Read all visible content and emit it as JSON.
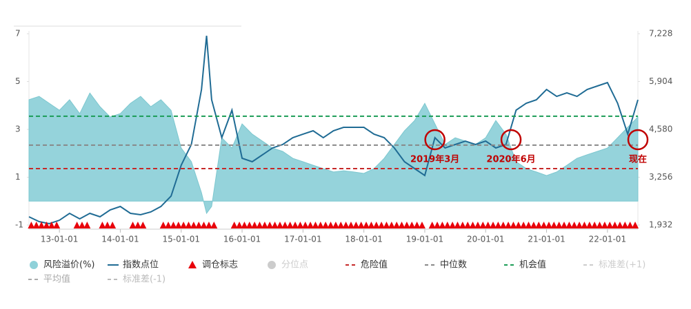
{
  "chart_data": {
    "type": "area-line",
    "x": [
      "12-07-01",
      "12-09-01",
      "12-11-01",
      "13-01-01",
      "13-03-01",
      "13-05-01",
      "13-07-01",
      "13-09-01",
      "13-11-01",
      "14-01-01",
      "14-03-01",
      "14-05-01",
      "14-07-01",
      "14-09-01",
      "14-11-01",
      "15-01-01",
      "15-03-01",
      "15-05-01",
      "15-06-01",
      "15-07-01",
      "15-09-01",
      "15-11-01",
      "16-01-01",
      "16-03-01",
      "16-05-01",
      "16-07-01",
      "16-09-01",
      "16-11-01",
      "17-01-01",
      "17-03-01",
      "17-05-01",
      "17-07-01",
      "17-09-01",
      "17-11-01",
      "18-01-01",
      "18-03-01",
      "18-05-01",
      "18-07-01",
      "18-09-01",
      "18-11-01",
      "19-01-01",
      "19-03-01",
      "19-05-01",
      "19-07-01",
      "19-09-01",
      "19-11-01",
      "20-01-01",
      "20-03-01",
      "20-05-01",
      "20-07-01",
      "20-09-01",
      "20-11-01",
      "21-01-01",
      "21-03-01",
      "21-05-01",
      "21-07-01",
      "21-09-01",
      "21-11-01",
      "22-01-01",
      "22-03-01",
      "22-05-01",
      "22-07-01"
    ],
    "series": [
      {
        "name": "风险溢价(%)",
        "type": "area",
        "color": "#8fd1d9",
        "values": [
          4.24,
          4.38,
          4.09,
          3.8,
          4.24,
          3.66,
          4.52,
          3.95,
          3.52,
          3.66,
          4.09,
          4.38,
          3.95,
          4.24,
          3.8,
          2.22,
          1.65,
          0.35,
          -0.51,
          -0.22,
          2.65,
          2.22,
          3.23,
          2.8,
          2.51,
          2.22,
          2.08,
          1.79,
          1.65,
          1.5,
          1.36,
          1.22,
          1.27,
          1.22,
          1.16,
          1.36,
          1.79,
          2.37,
          2.94,
          3.37,
          4.09,
          3.23,
          2.37,
          2.65,
          2.51,
          2.37,
          2.65,
          3.37,
          2.8,
          1.65,
          1.36,
          1.22,
          1.07,
          1.22,
          1.5,
          1.79,
          1.94,
          2.08,
          2.22,
          2.65,
          3.09,
          3.52
        ]
      },
      {
        "name": "指数点位",
        "type": "line",
        "axis": "y2",
        "color": "#1f6b94",
        "values": [
          2161,
          2027,
          1970,
          2065,
          2256,
          2103,
          2256,
          2161,
          2351,
          2446,
          2256,
          2218,
          2294,
          2446,
          2732,
          3589,
          4161,
          5685,
          7171,
          5400,
          4351,
          5113,
          3780,
          3685,
          3875,
          4066,
          4161,
          4351,
          4447,
          4542,
          4351,
          4542,
          4637,
          4637,
          4637,
          4447,
          4351,
          4066,
          3685,
          3494,
          3304,
          4351,
          4066,
          4161,
          4256,
          4161,
          4256,
          4066,
          4161,
          5113,
          5304,
          5399,
          5685,
          5494,
          5590,
          5494,
          5685,
          5780,
          5875,
          5304,
          4447,
          5399
        ]
      },
      {
        "name": "调仓标志",
        "type": "marker",
        "color": "#e8000b",
        "x": [
          "12-07-15",
          "12-08-15",
          "12-09-15",
          "12-10-15",
          "12-11-15",
          "12-12-15",
          "13-04-15",
          "13-05-15",
          "13-06-15",
          "13-09-15",
          "13-10-15",
          "13-11-15",
          "14-03-15",
          "14-04-15",
          "14-05-15",
          "14-09-15",
          "14-10-15",
          "14-11-15",
          "14-12-15",
          "15-01-15",
          "15-02-15",
          "15-03-15",
          "15-04-15",
          "15-05-15",
          "15-06-15",
          "15-07-15",
          "15-11-15",
          "15-12-15",
          "16-01-15",
          "16-02-15",
          "16-03-15",
          "16-04-15",
          "16-05-15",
          "16-06-15",
          "16-07-15",
          "16-08-15",
          "16-09-15",
          "16-10-15",
          "16-11-15",
          "16-12-15",
          "17-01-15",
          "17-02-15",
          "17-03-15",
          "17-04-15",
          "17-05-15",
          "17-06-15",
          "17-07-15",
          "17-08-15",
          "17-09-15",
          "17-10-15",
          "17-11-15",
          "17-12-15",
          "18-01-15",
          "18-02-15",
          "18-03-15",
          "18-04-15",
          "18-05-15",
          "18-06-15",
          "18-07-15",
          "18-08-15",
          "18-09-15",
          "18-10-15",
          "18-11-15",
          "18-12-15",
          "19-02-15",
          "19-03-15",
          "19-04-15",
          "19-05-15",
          "19-06-15",
          "19-07-15",
          "19-08-15",
          "19-09-15",
          "19-10-15",
          "19-11-15",
          "19-12-15",
          "20-01-15",
          "20-02-15",
          "20-03-15",
          "20-04-15",
          "20-05-15",
          "20-06-15",
          "20-07-15",
          "20-08-15",
          "20-09-15",
          "20-10-15",
          "20-11-15",
          "20-12-15",
          "21-01-15",
          "21-02-15",
          "21-03-15",
          "21-04-15",
          "21-05-15",
          "21-06-15",
          "21-07-15",
          "21-08-15",
          "21-09-15",
          "21-10-15",
          "21-11-15",
          "21-12-15",
          "22-01-15",
          "22-02-15",
          "22-03-15",
          "22-04-15",
          "22-05-15",
          "22-06-15"
        ]
      },
      {
        "name": "分位点",
        "type": "dot",
        "color": "#cccccc",
        "visible": false
      },
      {
        "name": "危险值",
        "type": "hline",
        "color": "#c62828",
        "value": 1.36
      },
      {
        "name": "中位数",
        "type": "hline",
        "color": "#888888",
        "value": 2.34
      },
      {
        "name": "机会值",
        "type": "hline",
        "color": "#1a9c55",
        "value": 3.55
      },
      {
        "name": "标准差(+1)",
        "type": "hline",
        "color": "#cccccc",
        "visible": false
      },
      {
        "name": "平均值",
        "type": "hline",
        "color": "#aaaaaa",
        "visible": false
      },
      {
        "name": "标准差(-1)",
        "type": "hline",
        "color": "#bbbbbb",
        "visible": false
      }
    ],
    "annotations": [
      {
        "text": "2019年3月",
        "x": "19-03-01",
        "y": 2.57
      },
      {
        "text": "2020年6月",
        "x": "20-06-01",
        "y": 2.57
      },
      {
        "text": "现在",
        "x": "22-07-01",
        "y": 2.57
      }
    ],
    "xlim": [
      "12-07-01",
      "22-07-01"
    ],
    "xticks": [
      "13-01-01",
      "14-01-01",
      "15-01-01",
      "16-01-01",
      "17-01-01",
      "18-01-01",
      "19-01-01",
      "20-01-01",
      "21-01-01",
      "22-01-01"
    ],
    "ylim": [
      -1,
      7
    ],
    "yticks": [
      -1,
      1,
      3,
      5,
      7
    ],
    "y2lim": [
      1932,
      7228
    ],
    "y2ticks": [
      {
        "value": 1932,
        "label": "1,932"
      },
      {
        "value": 3256,
        "label": "3,256"
      },
      {
        "value": 4580,
        "label": "4,580"
      },
      {
        "value": 5904,
        "label": "5,904"
      },
      {
        "value": 7228,
        "label": "7,228"
      }
    ],
    "grid": false,
    "annotation_color": "#c00000"
  }
}
